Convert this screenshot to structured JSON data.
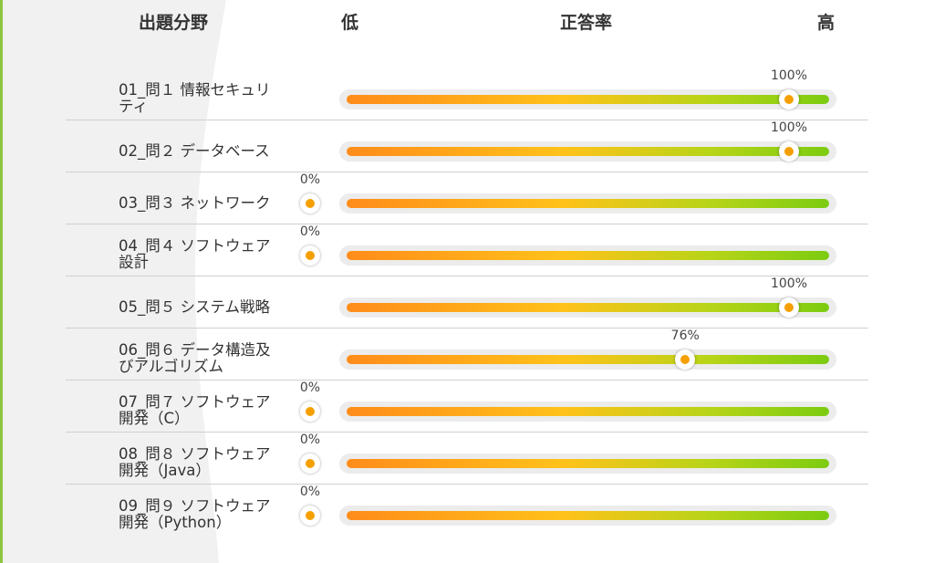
{
  "header": {
    "field": "出題分野",
    "low": "低",
    "rate": "正答率",
    "high": "高"
  },
  "colors": {
    "accent": "#8cc63f",
    "bar_start": "#ff8c1a",
    "bar_mid": "#ffc21a",
    "bar_end": "#7ccc11",
    "knob_dot": "#f5a000",
    "left_panel": "#f1f1f1"
  },
  "rows": [
    {
      "lines": [
        "01_問１ 情報セキュリ",
        "ティ"
      ],
      "percent_label": "100%",
      "value": 100
    },
    {
      "lines": [
        "02_問２ データベース"
      ],
      "percent_label": "100%",
      "value": 100
    },
    {
      "lines": [
        "03_問３ ネットワーク"
      ],
      "percent_label": "0%",
      "value": 0
    },
    {
      "lines": [
        "04_問４ ソフトウェア",
        "設計"
      ],
      "percent_label": "0%",
      "value": 0
    },
    {
      "lines": [
        "05_問５ システム戦略"
      ],
      "percent_label": "100%",
      "value": 100
    },
    {
      "lines": [
        "06_問６ データ構造及",
        "びアルゴリズム"
      ],
      "percent_label": "76%",
      "value": 76
    },
    {
      "lines": [
        "07_問７ ソフトウェア",
        "開発（C）"
      ],
      "percent_label": "0%",
      "value": 0
    },
    {
      "lines": [
        "08_問８ ソフトウェア",
        "開発（Java）"
      ],
      "percent_label": "0%",
      "value": 0
    },
    {
      "lines": [
        "09_問９ ソフトウェア",
        "開発（Python）"
      ],
      "percent_label": "0%",
      "value": 0
    }
  ]
}
